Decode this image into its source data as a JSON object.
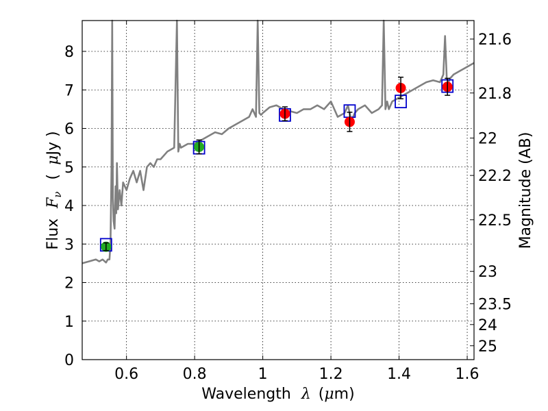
{
  "chart_data": {
    "type": "scatter",
    "title": "",
    "xlabel": "Wavelength",
    "xlabel_symbol": "λ",
    "xlabel_unit_open": "(",
    "xlabel_unit_mu": "μ",
    "xlabel_unit_rest": "m)",
    "ylabel": "Flux",
    "ylabel_symbol": "F",
    "ylabel_subscript": "ν",
    "ylabel_unit_open": "(",
    "ylabel_unit_mu": "μ",
    "ylabel_unit_rest": "Jy )",
    "y2label": "Magnitude (AB)",
    "xlim": [
      0.47,
      1.62
    ],
    "ylim": [
      0,
      8.8
    ],
    "grid": true,
    "x_ticks": [
      {
        "value": 0.6,
        "label": "0.6"
      },
      {
        "value": 0.8,
        "label": "0.8"
      },
      {
        "value": 1.0,
        "label": "1"
      },
      {
        "value": 1.2,
        "label": "1.2"
      },
      {
        "value": 1.4,
        "label": "1.4"
      },
      {
        "value": 1.6,
        "label": "1.6"
      }
    ],
    "y_ticks": [
      {
        "value": 0,
        "label": "0"
      },
      {
        "value": 1,
        "label": "1"
      },
      {
        "value": 2,
        "label": "2"
      },
      {
        "value": 3,
        "label": "3"
      },
      {
        "value": 4,
        "label": "4"
      },
      {
        "value": 5,
        "label": "5"
      },
      {
        "value": 6,
        "label": "6"
      },
      {
        "value": 7,
        "label": "7"
      },
      {
        "value": 8,
        "label": "8"
      }
    ],
    "y2_ticks": [
      {
        "flux": 8.32,
        "label": "21.6"
      },
      {
        "flux": 6.92,
        "label": "21.8"
      },
      {
        "flux": 5.75,
        "label": "22"
      },
      {
        "flux": 4.78,
        "label": "22.2"
      },
      {
        "flux": 3.63,
        "label": "22.5"
      },
      {
        "flux": 2.29,
        "label": "23"
      },
      {
        "flux": 1.45,
        "label": "23.5"
      },
      {
        "flux": 0.91,
        "label": "24"
      },
      {
        "flux": 0.36,
        "label": "25"
      }
    ],
    "series": [
      {
        "name": "template_spectrum",
        "kind": "line",
        "color": "#808080",
        "x": [
          0.47,
          0.49,
          0.51,
          0.52,
          0.53,
          0.54,
          0.545,
          0.55,
          0.553,
          0.556,
          0.558,
          0.56,
          0.562,
          0.565,
          0.568,
          0.57,
          0.572,
          0.575,
          0.58,
          0.585,
          0.59,
          0.6,
          0.61,
          0.62,
          0.63,
          0.64,
          0.65,
          0.66,
          0.67,
          0.68,
          0.69,
          0.7,
          0.72,
          0.74,
          0.748,
          0.752,
          0.756,
          0.76,
          0.78,
          0.8,
          0.82,
          0.84,
          0.86,
          0.88,
          0.9,
          0.92,
          0.94,
          0.96,
          0.97,
          0.98,
          0.985,
          0.99,
          0.995,
          1.0,
          1.02,
          1.04,
          1.06,
          1.08,
          1.1,
          1.12,
          1.14,
          1.16,
          1.18,
          1.2,
          1.22,
          1.24,
          1.25,
          1.26,
          1.27,
          1.28,
          1.3,
          1.32,
          1.34,
          1.35,
          1.355,
          1.36,
          1.365,
          1.37,
          1.38,
          1.4,
          1.42,
          1.44,
          1.46,
          1.48,
          1.5,
          1.52,
          1.53,
          1.535,
          1.54,
          1.545,
          1.55,
          1.56,
          1.58,
          1.6,
          1.62
        ],
        "y": [
          2.5,
          2.55,
          2.6,
          2.55,
          2.6,
          2.52,
          2.6,
          2.6,
          3.0,
          5.0,
          8.8,
          4.2,
          3.6,
          3.4,
          4.5,
          3.8,
          5.1,
          3.9,
          4.4,
          4.0,
          4.6,
          4.4,
          4.7,
          4.9,
          4.6,
          4.9,
          4.4,
          5.0,
          5.1,
          5.0,
          5.2,
          5.2,
          5.4,
          5.5,
          8.8,
          5.4,
          5.6,
          5.5,
          5.6,
          5.6,
          5.7,
          5.8,
          5.9,
          5.85,
          6.0,
          6.1,
          6.2,
          6.3,
          6.5,
          6.3,
          8.8,
          6.4,
          6.35,
          6.4,
          6.55,
          6.6,
          6.5,
          6.45,
          6.4,
          6.5,
          6.5,
          6.6,
          6.5,
          6.7,
          6.3,
          6.4,
          6.6,
          6.2,
          6.4,
          6.5,
          6.6,
          6.4,
          6.5,
          6.6,
          8.8,
          6.5,
          6.7,
          6.5,
          6.7,
          6.8,
          6.9,
          7.0,
          7.1,
          7.2,
          7.25,
          7.2,
          7.4,
          8.4,
          7.3,
          7.2,
          7.3,
          7.4,
          7.5,
          7.6,
          7.7
        ]
      },
      {
        "name": "model_photometry",
        "kind": "square",
        "color": "#0000cc",
        "x": [
          0.54,
          0.813,
          1.065,
          1.255,
          1.405,
          1.542
        ],
        "y": [
          2.98,
          5.5,
          6.35,
          6.45,
          6.7,
          7.1
        ]
      },
      {
        "name": "optical_data",
        "kind": "point",
        "color": "#22aa22",
        "x": [
          0.54,
          0.813
        ],
        "y": [
          2.93,
          5.52
        ],
        "yerr": [
          0.1,
          0.18
        ]
      },
      {
        "name": "nir_data",
        "kind": "point",
        "color": "#ff0000",
        "x": [
          1.065,
          1.255,
          1.405,
          1.542
        ],
        "y": [
          6.38,
          6.17,
          7.05,
          7.08
        ],
        "yerr": [
          0.18,
          0.25,
          0.28,
          0.22
        ]
      }
    ]
  }
}
